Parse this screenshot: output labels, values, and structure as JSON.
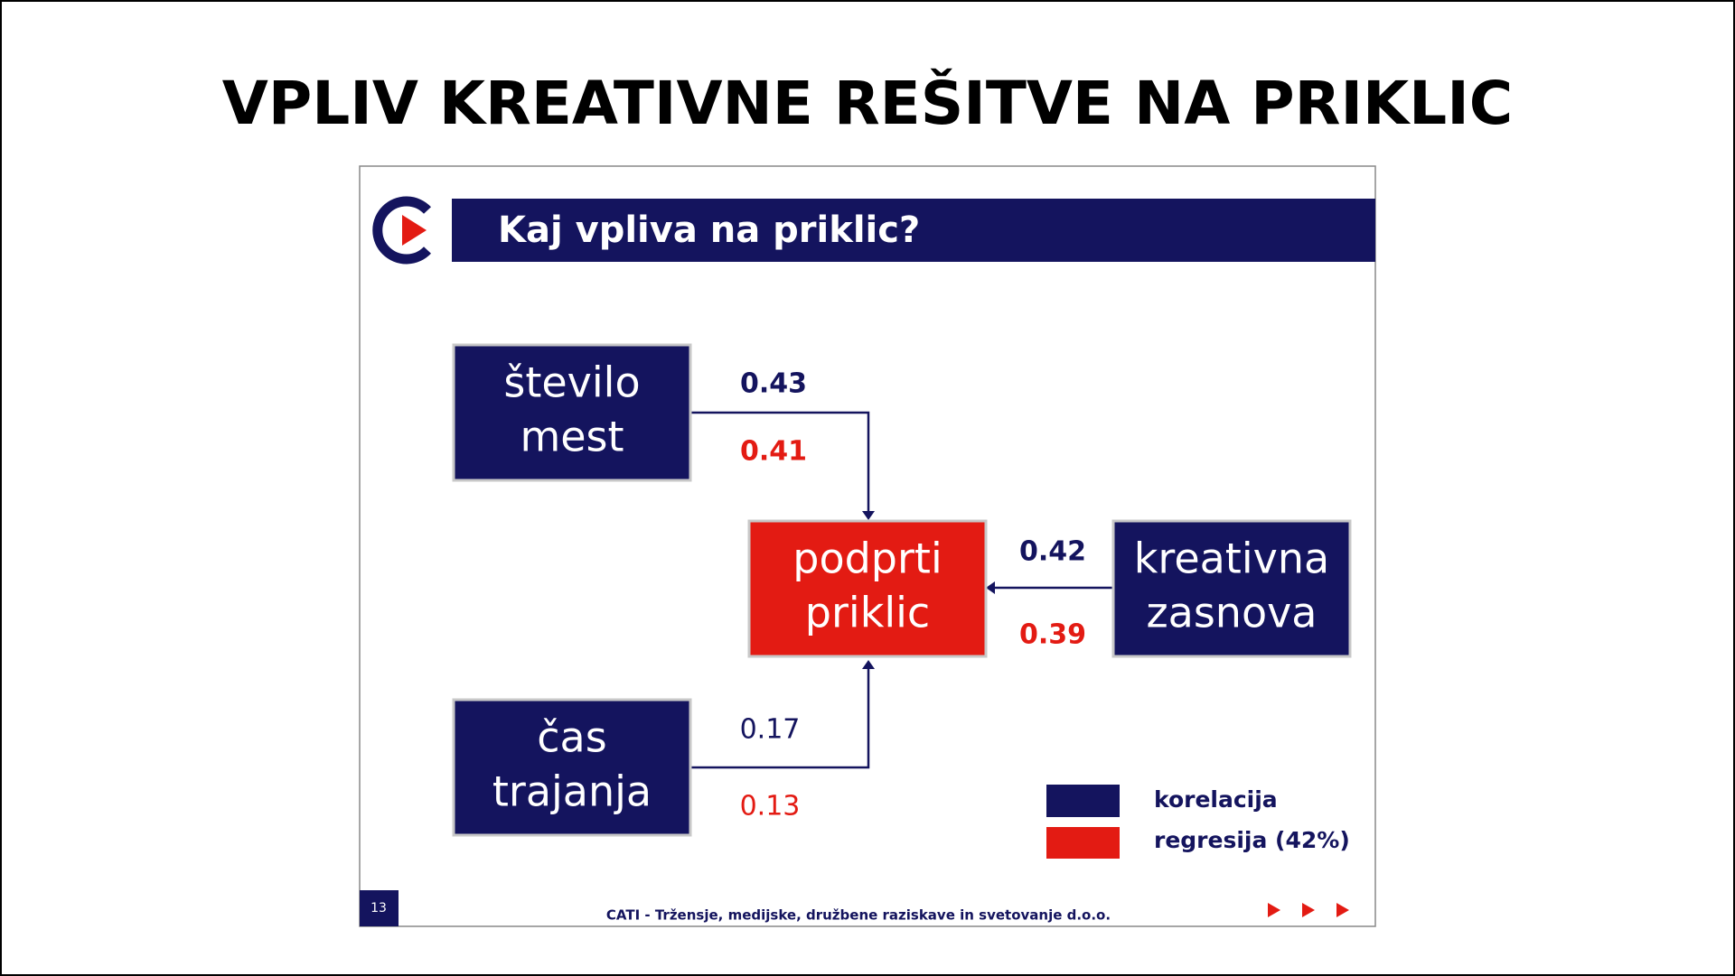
{
  "title": "VPLIV KREATIVNE REŠITVE NA PRIKLIC",
  "slide": {
    "header": "Kaj vpliva na priklic?",
    "page_number": "13",
    "footer": "CATI - Tržensje, medijske, družbene raziskave in svetovanje d.o.o.",
    "nodes": [
      {
        "label": [
          "število",
          "mest"
        ]
      },
      {
        "label": [
          "podprti",
          "priklic"
        ]
      },
      {
        "label": [
          "kreativna",
          "zasnova"
        ]
      },
      {
        "label": [
          "čas",
          "trajanja"
        ]
      }
    ],
    "edges": [
      {
        "correlation": "0.43",
        "regression": "0.41"
      },
      {
        "correlation": "0.42",
        "regression": "0.39"
      },
      {
        "correlation": "0.17",
        "regression": "0.13"
      }
    ],
    "legend": [
      "korelacija",
      "regresija (42%)"
    ]
  }
}
